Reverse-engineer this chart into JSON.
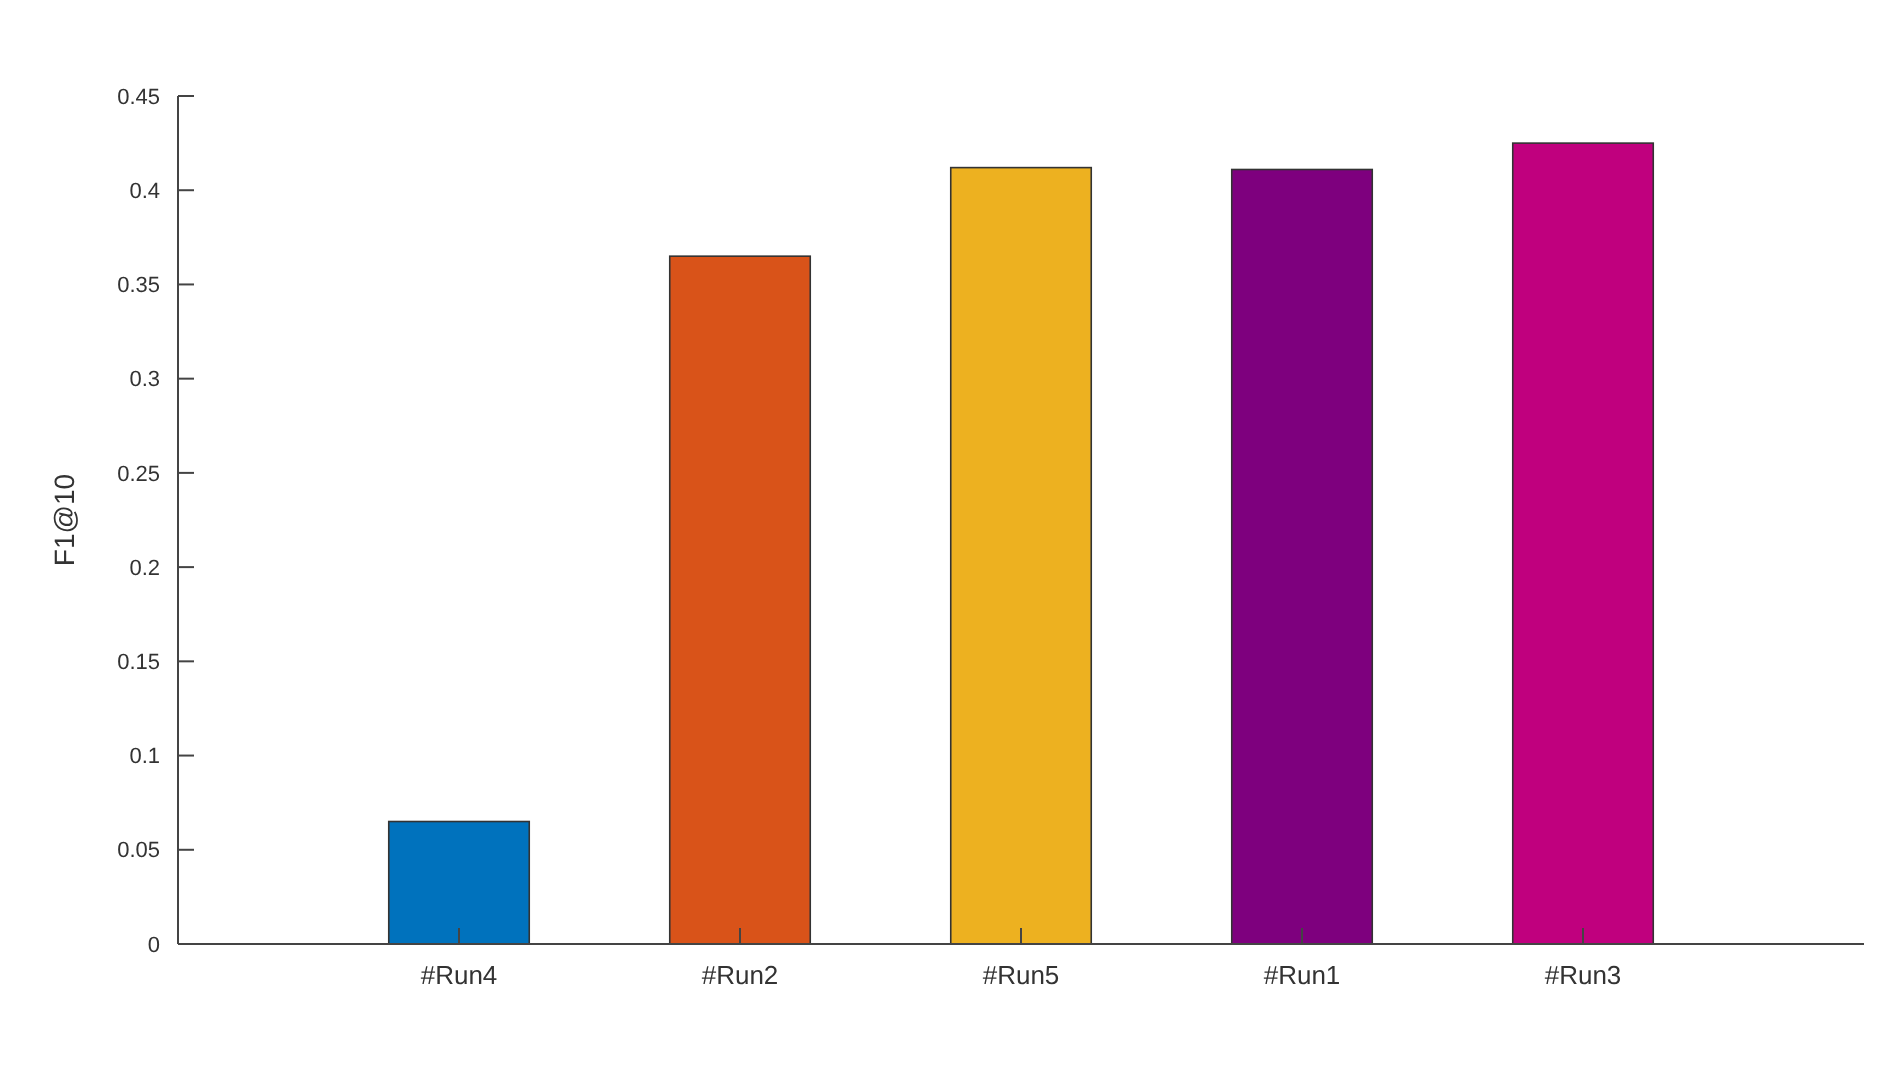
{
  "chart_data": {
    "type": "bar",
    "ylabel": "F1@10",
    "categories": [
      "#Run4",
      "#Run2",
      "#Run5",
      "#Run1",
      "#Run3"
    ],
    "values": [
      0.065,
      0.365,
      0.412,
      0.411,
      0.425
    ],
    "colors": [
      "#0072bd",
      "#d95319",
      "#edb120",
      "#7e007e",
      "#c0007e"
    ],
    "ylim": [
      0,
      0.45
    ],
    "yticks": [
      0,
      0.05,
      0.1,
      0.15,
      0.2,
      0.25,
      0.3,
      0.35,
      0.4,
      0.45
    ],
    "grid": false
  }
}
